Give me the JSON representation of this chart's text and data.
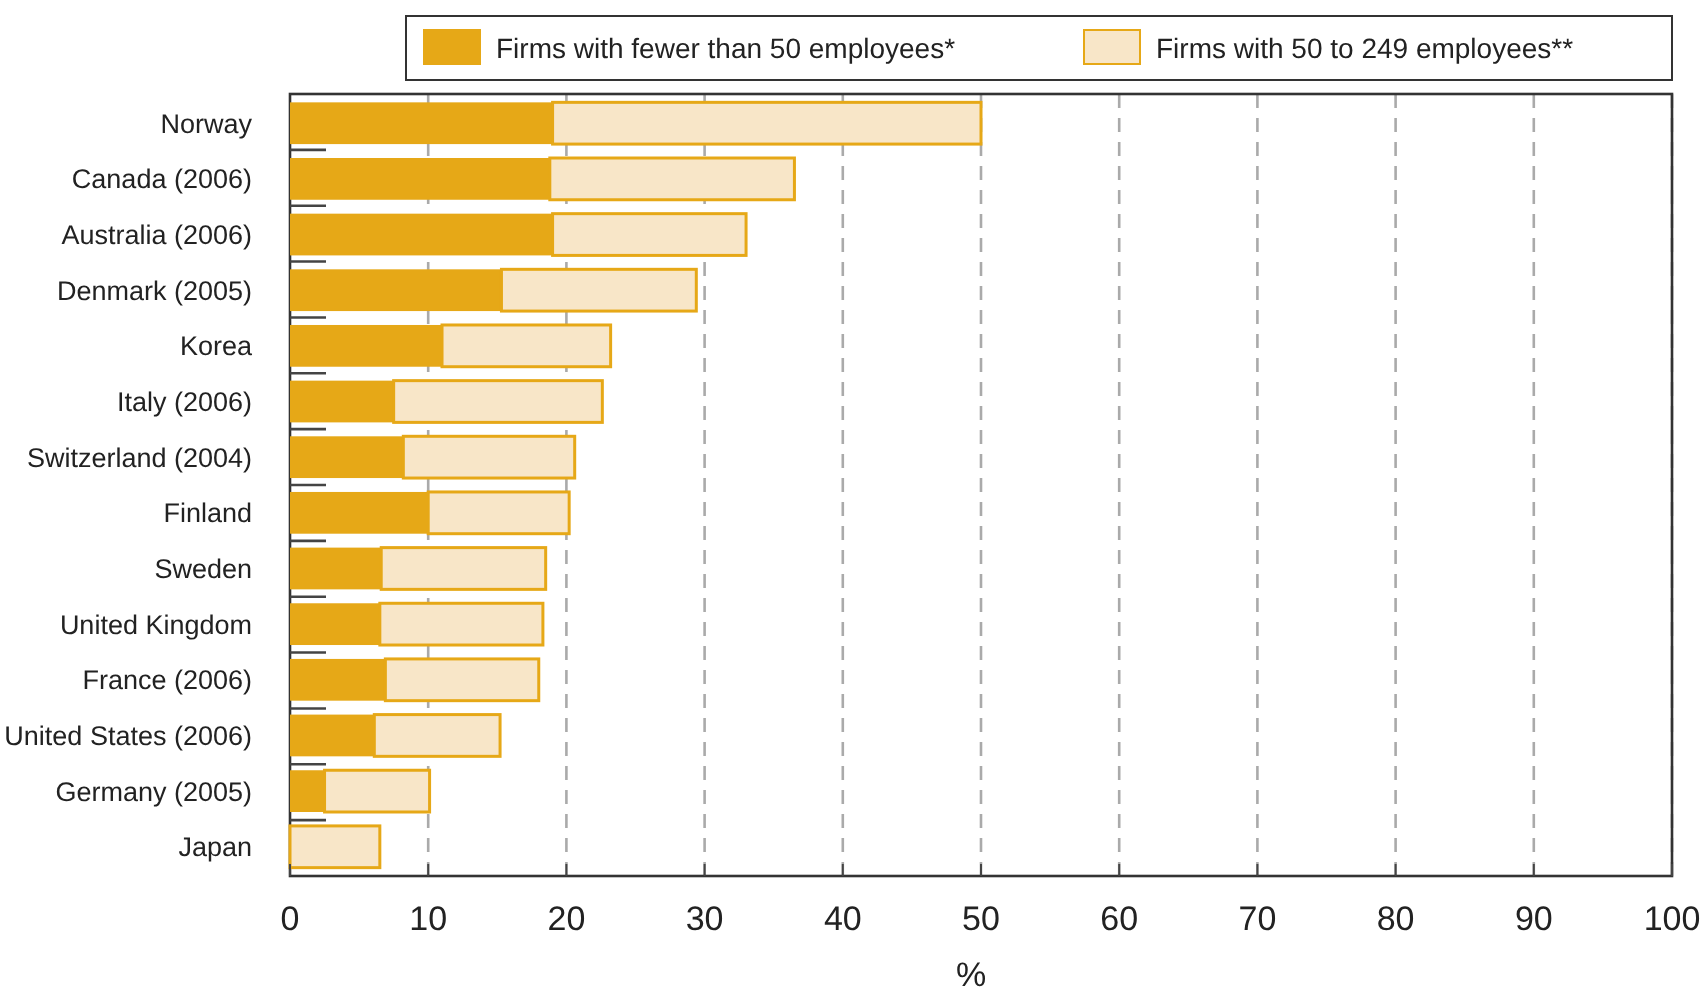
{
  "chart_data": {
    "type": "bar",
    "orientation": "horizontal",
    "stacked": true,
    "xlabel": "%",
    "categories": [
      "Norway",
      "Canada (2006)",
      "Australia (2006)",
      "Denmark (2005)",
      "Korea",
      "Italy (2006)",
      "Switzerland (2004)",
      "Finland",
      "Sweden",
      "United Kingdom",
      "France (2006)",
      "United States (2006)",
      "Germany (2005)",
      "Japan"
    ],
    "series": [
      {
        "name": "Firms with fewer than 50 employees*",
        "color": "#e6a817",
        "values": [
          19,
          18.8,
          19,
          15.3,
          11,
          7.5,
          8.2,
          10,
          6.6,
          6.5,
          6.9,
          6.1,
          2.5,
          0
        ]
      },
      {
        "name": "Firms with 50 to 249 employees**",
        "color": "#f8e6c8",
        "values": [
          31,
          17.7,
          14,
          14.1,
          12.2,
          15.1,
          12.4,
          10.2,
          11.9,
          11.8,
          11.1,
          9.1,
          7.6,
          6.5
        ]
      }
    ],
    "xlim": [
      0,
      100
    ],
    "xticks": [
      0,
      10,
      20,
      30,
      40,
      50,
      60,
      70,
      80,
      90,
      100
    ],
    "grid": "x",
    "legend": "top right"
  }
}
